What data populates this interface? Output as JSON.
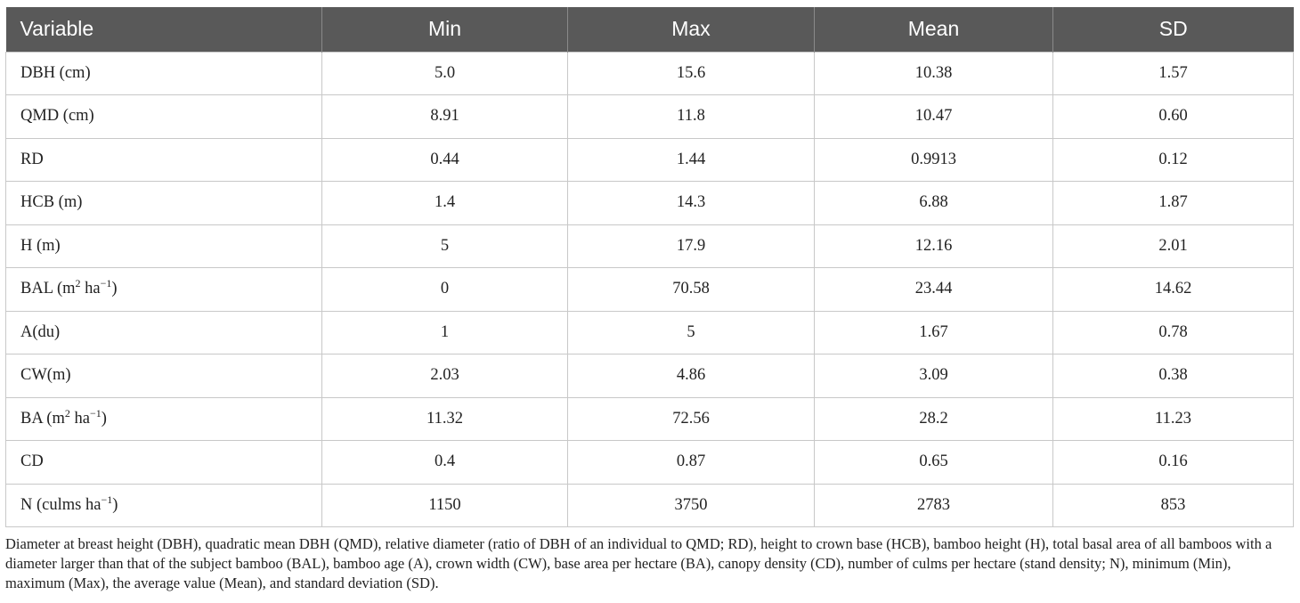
{
  "table": {
    "headers": [
      "Variable",
      "Min",
      "Max",
      "Mean",
      "SD"
    ],
    "rows": [
      {
        "var_pre": "DBH (cm)",
        "var_sup1": "",
        "var_mid": "",
        "var_sup2": "",
        "var_post": "",
        "min": "5.0",
        "max": "15.6",
        "mean": "10.38",
        "sd": "1.57"
      },
      {
        "var_pre": "QMD (cm)",
        "var_sup1": "",
        "var_mid": "",
        "var_sup2": "",
        "var_post": "",
        "min": "8.91",
        "max": "11.8",
        "mean": "10.47",
        "sd": "0.60"
      },
      {
        "var_pre": "RD",
        "var_sup1": "",
        "var_mid": "",
        "var_sup2": "",
        "var_post": "",
        "min": "0.44",
        "max": "1.44",
        "mean": "0.9913",
        "sd": "0.12"
      },
      {
        "var_pre": "HCB (m)",
        "var_sup1": "",
        "var_mid": "",
        "var_sup2": "",
        "var_post": "",
        "min": "1.4",
        "max": "14.3",
        "mean": "6.88",
        "sd": "1.87"
      },
      {
        "var_pre": "H (m)",
        "var_sup1": "",
        "var_mid": "",
        "var_sup2": "",
        "var_post": "",
        "min": "5",
        "max": "17.9",
        "mean": "12.16",
        "sd": "2.01"
      },
      {
        "var_pre": "BAL (m",
        "var_sup1": "2",
        "var_mid": " ha",
        "var_sup2": "−1",
        "var_post": ")",
        "min": "0",
        "max": "70.58",
        "mean": "23.44",
        "sd": "14.62"
      },
      {
        "var_pre": "A(du)",
        "var_sup1": "",
        "var_mid": "",
        "var_sup2": "",
        "var_post": "",
        "min": "1",
        "max": "5",
        "mean": "1.67",
        "sd": "0.78"
      },
      {
        "var_pre": "CW(m)",
        "var_sup1": "",
        "var_mid": "",
        "var_sup2": "",
        "var_post": "",
        "min": "2.03",
        "max": "4.86",
        "mean": "3.09",
        "sd": "0.38"
      },
      {
        "var_pre": "BA (m",
        "var_sup1": "2",
        "var_mid": " ha",
        "var_sup2": "−1",
        "var_post": ")",
        "min": "11.32",
        "max": "72.56",
        "mean": "28.2",
        "sd": "11.23"
      },
      {
        "var_pre": "CD",
        "var_sup1": "",
        "var_mid": "",
        "var_sup2": "",
        "var_post": "",
        "min": "0.4",
        "max": "0.87",
        "mean": "0.65",
        "sd": "0.16"
      },
      {
        "var_pre": "N (culms ha",
        "var_sup1": "",
        "var_mid": "",
        "var_sup2": "−1",
        "var_post": ")",
        "min": "1150",
        "max": "3750",
        "mean": "2783",
        "sd": "853"
      }
    ]
  },
  "footnote": "Diameter at breast height (DBH), quadratic mean DBH (QMD), relative diameter (ratio of DBH of an individual to QMD; RD), height to crown base (HCB), bamboo height (H), total basal area of all bamboos with a diameter larger than that of the subject bamboo (BAL), bamboo age (A), crown width (CW), base area per hectare (BA), canopy density (CD), number of culms per hectare (stand density; N), minimum (Min), maximum (Max), the average value (Mean), and standard deviation (SD).",
  "colors": {
    "header_bg": "#595959",
    "header_text": "#ffffff",
    "grid_line": "#c8c8c8"
  }
}
